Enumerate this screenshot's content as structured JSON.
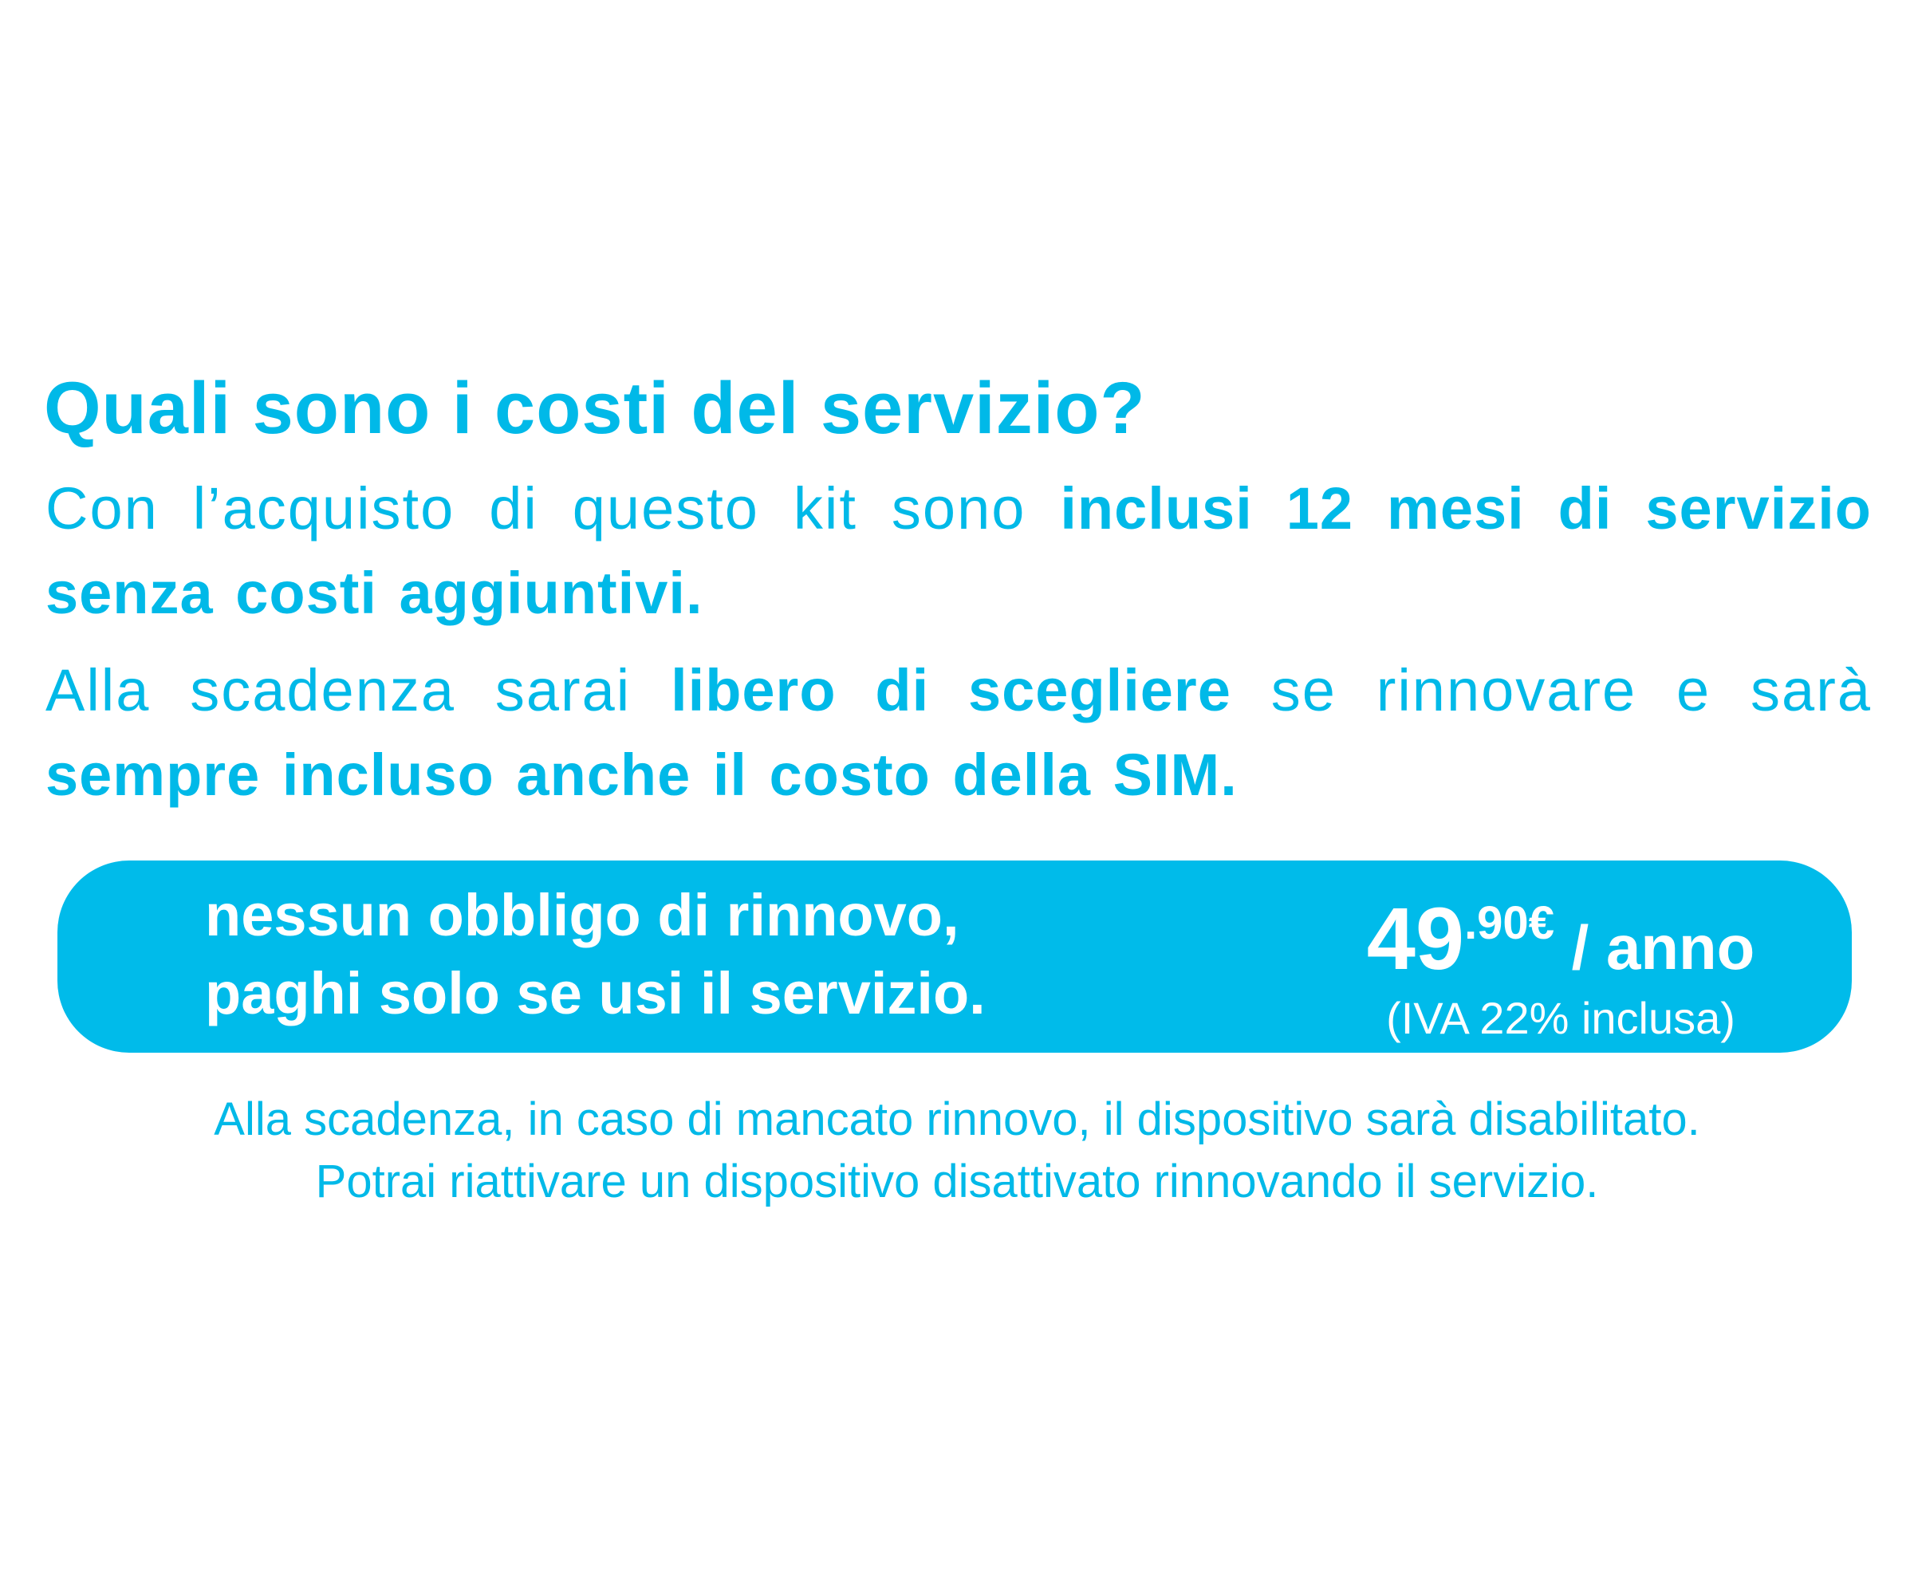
{
  "title": "Quali sono i costi del servizio?",
  "paragraph1": {
    "plain": "Con l’acquisto di questo kit sono ",
    "bold": "inclusi 12 mesi di servizio senza costi aggiuntivi."
  },
  "paragraph2": {
    "plain1": "Alla scadenza sarai ",
    "bold1": "libero di scegliere",
    "plain2": " se rinnovare e sarà ",
    "bold2": "sempre incluso anche il costo della SIM."
  },
  "banner": {
    "line1": "nessun obbligo di rinnovo,",
    "line2": "paghi solo se usi il servizio.",
    "price_integer": "49",
    "price_decimal": ".90€",
    "price_unit": " / anno",
    "vat_note": "(IVA 22% inclusa)",
    "background_color": "#00BBEA"
  },
  "footer": {
    "line1": "Alla scadenza, in caso di mancato rinnovo, il dispositivo sarà disabilitato.",
    "line2": "Potrai riattivare un dispositivo disattivato rinnovando il servizio."
  },
  "colors": {
    "accent": "#00B9E8",
    "text_on_banner": "#FFFFFF"
  }
}
